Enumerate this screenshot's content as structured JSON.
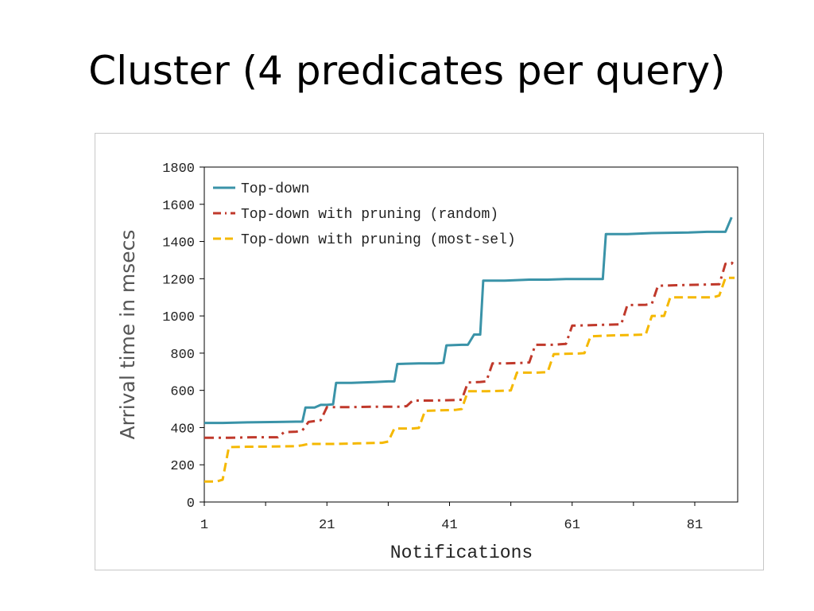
{
  "slide": {
    "title": "Cluster (4 predicates per query)"
  },
  "chart_data": {
    "type": "line",
    "xlabel": "Notifications",
    "ylabel": "Arrival time in msecs",
    "xlim": [
      1,
      88
    ],
    "ylim": [
      0,
      1800
    ],
    "x_ticks": [
      1,
      21,
      41,
      61,
      81
    ],
    "y_ticks": [
      0,
      200,
      400,
      600,
      800,
      1000,
      1200,
      1400,
      1600,
      1800
    ],
    "legend_position": "top-left",
    "grid": false,
    "series": [
      {
        "name": "Top-down",
        "color": "#3a93a8",
        "dash": "solid",
        "points": [
          [
            1,
            425
          ],
          [
            4,
            425
          ],
          [
            8,
            428
          ],
          [
            13,
            430
          ],
          [
            16,
            432
          ],
          [
            17,
            432
          ],
          [
            17.5,
            508
          ],
          [
            19,
            508
          ],
          [
            20,
            522
          ],
          [
            21,
            522
          ],
          [
            22,
            525
          ],
          [
            22.5,
            640
          ],
          [
            25,
            640
          ],
          [
            29,
            645
          ],
          [
            31,
            648
          ],
          [
            32,
            648
          ],
          [
            32.5,
            742
          ],
          [
            36,
            745
          ],
          [
            39,
            745
          ],
          [
            40,
            748
          ],
          [
            40.5,
            842
          ],
          [
            43,
            845
          ],
          [
            44,
            845
          ],
          [
            45,
            900
          ],
          [
            46,
            900
          ],
          [
            46.5,
            1190
          ],
          [
            50,
            1190
          ],
          [
            54,
            1195
          ],
          [
            57,
            1195
          ],
          [
            60,
            1198
          ],
          [
            66,
            1198
          ],
          [
            66.5,
            1440
          ],
          [
            70,
            1440
          ],
          [
            74,
            1445
          ],
          [
            80,
            1448
          ],
          [
            83,
            1452
          ],
          [
            86,
            1452
          ],
          [
            87,
            1530
          ]
        ]
      },
      {
        "name": "Top-down with pruning (random)",
        "color": "#c0392b",
        "dash": "dashdot",
        "points": [
          [
            1,
            345
          ],
          [
            5,
            345
          ],
          [
            9,
            348
          ],
          [
            13,
            348
          ],
          [
            14,
            375
          ],
          [
            16,
            378
          ],
          [
            17,
            385
          ],
          [
            18,
            430
          ],
          [
            20,
            440
          ],
          [
            21,
            510
          ],
          [
            25,
            510
          ],
          [
            29,
            512
          ],
          [
            33,
            512
          ],
          [
            34,
            515
          ],
          [
            35,
            545
          ],
          [
            38,
            545
          ],
          [
            42,
            548
          ],
          [
            43,
            550
          ],
          [
            44,
            642
          ],
          [
            46,
            645
          ],
          [
            47,
            648
          ],
          [
            48,
            745
          ],
          [
            50,
            745
          ],
          [
            53,
            748
          ],
          [
            54,
            750
          ],
          [
            55,
            845
          ],
          [
            58,
            845
          ],
          [
            59,
            848
          ],
          [
            60,
            850
          ],
          [
            61,
            948
          ],
          [
            64,
            950
          ],
          [
            66,
            952
          ],
          [
            69,
            955
          ],
          [
            70,
            1058
          ],
          [
            73,
            1060
          ],
          [
            74,
            1065
          ],
          [
            75,
            1162
          ],
          [
            78,
            1165
          ],
          [
            82,
            1168
          ],
          [
            85,
            1170
          ],
          [
            86,
            1280
          ],
          [
            87,
            1280
          ],
          [
            87.5,
            1305
          ]
        ]
      },
      {
        "name": "Top-down with pruning (most-sel)",
        "color": "#f5b800",
        "dash": "dashed",
        "points": [
          [
            1,
            110
          ],
          [
            3,
            110
          ],
          [
            4,
            120
          ],
          [
            5,
            295
          ],
          [
            8,
            297
          ],
          [
            12,
            298
          ],
          [
            16,
            300
          ],
          [
            17,
            305
          ],
          [
            18,
            312
          ],
          [
            22,
            312
          ],
          [
            26,
            315
          ],
          [
            30,
            318
          ],
          [
            31,
            325
          ],
          [
            32,
            395
          ],
          [
            35,
            395
          ],
          [
            36,
            398
          ],
          [
            37,
            490
          ],
          [
            39,
            492
          ],
          [
            42,
            495
          ],
          [
            43,
            500
          ],
          [
            44,
            595
          ],
          [
            47,
            595
          ],
          [
            50,
            598
          ],
          [
            51,
            600
          ],
          [
            52,
            695
          ],
          [
            55,
            695
          ],
          [
            57,
            698
          ],
          [
            58,
            795
          ],
          [
            62,
            798
          ],
          [
            63,
            800
          ],
          [
            64,
            890
          ],
          [
            67,
            895
          ],
          [
            71,
            898
          ],
          [
            73,
            900
          ],
          [
            74,
            1000
          ],
          [
            76,
            1000
          ],
          [
            77,
            1100
          ],
          [
            80,
            1100
          ],
          [
            84,
            1100
          ],
          [
            85,
            1110
          ],
          [
            86,
            1205
          ],
          [
            87.5,
            1205
          ]
        ]
      }
    ]
  }
}
